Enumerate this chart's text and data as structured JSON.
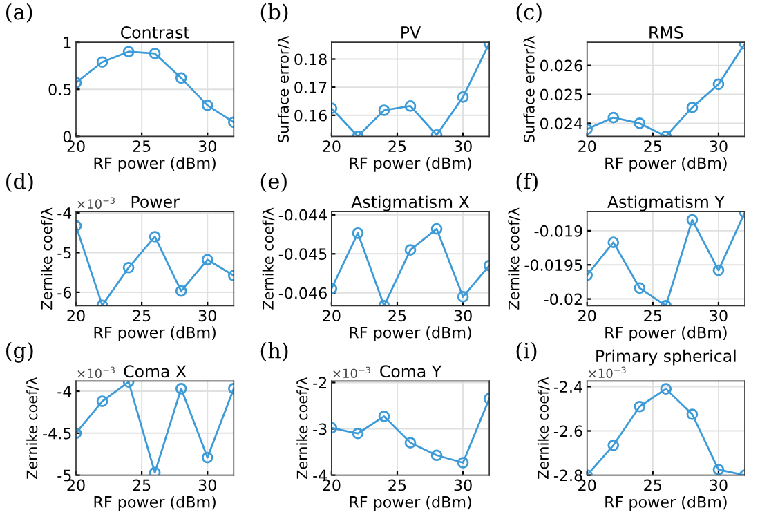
{
  "chart_data": [
    {
      "type": "line",
      "title": "Contrast",
      "xlabel": "RF power (dBm)",
      "annotations": [
        "(a)"
      ],
      "x": [
        20,
        22,
        24,
        26,
        28,
        30,
        32
      ],
      "series": [
        {
          "color": "#3d9bd8",
          "values": [
            0.57,
            0.79,
            0.9,
            0.88,
            0.62,
            0.33,
            0.15
          ]
        }
      ],
      "xlim": [
        20,
        32
      ],
      "xticks": [
        20,
        25,
        30
      ],
      "ylim": [
        0,
        1
      ],
      "yticks": [
        0,
        0.5,
        1
      ],
      "grid": true,
      "marker": "circle",
      "line_style": "solid"
    },
    {
      "type": "line",
      "title": "PV",
      "xlabel": "RF power (dBm)",
      "ylabel": "Surface error/λ",
      "annotations": [
        "(b)"
      ],
      "x": [
        20,
        22,
        24,
        26,
        28,
        30,
        32
      ],
      "series": [
        {
          "color": "#3d9bd8",
          "values": [
            0.1625,
            0.1525,
            0.1618,
            0.1633,
            0.153,
            0.1665,
            0.1856
          ]
        }
      ],
      "xlim": [
        20,
        32
      ],
      "xticks": [
        20,
        25,
        30
      ],
      "ylim": [
        0.1525,
        0.186
      ],
      "yticks": [
        0.16,
        0.17,
        0.18
      ],
      "grid": true,
      "marker": "circle",
      "line_style": "solid"
    },
    {
      "type": "line",
      "title": "RMS",
      "xlabel": "RF power (dBm)",
      "ylabel": "Surface error/λ",
      "annotations": [
        "(c)"
      ],
      "x": [
        20,
        22,
        24,
        26,
        28,
        30,
        32
      ],
      "series": [
        {
          "color": "#3d9bd8",
          "values": [
            0.0238,
            0.0242,
            0.024,
            0.02355,
            0.02455,
            0.02535,
            0.02675
          ]
        }
      ],
      "xlim": [
        20,
        32
      ],
      "xticks": [
        20,
        25,
        30
      ],
      "ylim": [
        0.02355,
        0.0268
      ],
      "yticks": [
        0.024,
        0.025,
        0.026
      ],
      "grid": true,
      "marker": "circle",
      "line_style": "solid"
    },
    {
      "type": "line",
      "title": "Power",
      "xlabel": "RF power (dBm)",
      "ylabel": "Zernike coef/λ",
      "annotations": [
        "(d)",
        "×10$^{−3}$"
      ],
      "x": [
        20,
        22,
        24,
        26,
        28,
        30,
        32
      ],
      "series": [
        {
          "color": "#3d9bd8",
          "values": [
            -4.33,
            -6.33,
            -5.38,
            -4.6,
            -5.97,
            -5.18,
            -5.58
          ]
        }
      ],
      "xlim": [
        20,
        32
      ],
      "xticks": [
        20,
        25,
        30
      ],
      "ylim": [
        -6.34,
        -3.97
      ],
      "yticks": [
        -6,
        -5,
        -4
      ],
      "grid": true,
      "marker": "circle",
      "line_style": "solid"
    },
    {
      "type": "line",
      "title": "Astigmatism X",
      "xlabel": "RF power (dBm)",
      "ylabel": "Zernike coef/λ",
      "annotations": [
        "(e)"
      ],
      "x": [
        20,
        22,
        24,
        26,
        28,
        30,
        32
      ],
      "series": [
        {
          "color": "#3d9bd8",
          "values": [
            -0.04589,
            -0.04447,
            -0.04633,
            -0.0449,
            -0.04436,
            -0.0461,
            -0.0453
          ]
        }
      ],
      "xlim": [
        20,
        32
      ],
      "xticks": [
        20,
        25,
        30
      ],
      "ylim": [
        -0.04633,
        -0.04392
      ],
      "yticks": [
        -0.046,
        -0.045,
        -0.044
      ],
      "grid": true,
      "marker": "circle",
      "line_style": "solid"
    },
    {
      "type": "line",
      "title": "Astigmatism Y",
      "xlabel": "RF power (dBm)",
      "ylabel": "Zernike coef/λ",
      "annotations": [
        "(f)"
      ],
      "x": [
        20,
        22,
        24,
        26,
        28,
        30,
        32
      ],
      "series": [
        {
          "color": "#3d9bd8",
          "values": [
            -0.01965,
            -0.01917,
            -0.01984,
            -0.0201,
            -0.01884,
            -0.01958,
            -0.01873
          ]
        }
      ],
      "xlim": [
        20,
        32
      ],
      "xticks": [
        20,
        25,
        30
      ],
      "ylim": [
        -0.0201,
        -0.01872
      ],
      "yticks": [
        -0.02,
        -0.0195,
        -0.019
      ],
      "grid": true,
      "marker": "circle",
      "line_style": "solid"
    },
    {
      "type": "line",
      "title": "Coma X",
      "xlabel": "RF power (dBm)",
      "ylabel": "Zernike coef/λ",
      "annotations": [
        "(g)",
        "×10$^{−3}$"
      ],
      "x": [
        20,
        22,
        24,
        26,
        28,
        30,
        32
      ],
      "series": [
        {
          "color": "#3d9bd8",
          "values": [
            -4.5,
            -4.12,
            -3.89,
            -4.97,
            -3.97,
            -4.79,
            -3.97
          ]
        }
      ],
      "xlim": [
        20,
        32
      ],
      "xticks": [
        20,
        25,
        30
      ],
      "ylim": [
        -5,
        -3.88
      ],
      "yticks": [
        -5,
        -4.5,
        -4
      ],
      "grid": true,
      "marker": "circle",
      "line_style": "solid"
    },
    {
      "type": "line",
      "title": "Coma Y",
      "xlabel": "RF power (dBm)",
      "ylabel": "Zernike coef/λ",
      "annotations": [
        "(h)",
        "×10$^{−3}$"
      ],
      "x": [
        20,
        22,
        24,
        26,
        28,
        30,
        32
      ],
      "series": [
        {
          "color": "#3d9bd8",
          "values": [
            -2.98,
            -3.1,
            -2.73,
            -3.3,
            -3.57,
            -3.73,
            -2.35
          ]
        }
      ],
      "xlim": [
        20,
        32
      ],
      "xticks": [
        20,
        25,
        30
      ],
      "ylim": [
        -4,
        -1.97
      ],
      "yticks": [
        -4,
        -3,
        -2
      ],
      "grid": true,
      "marker": "circle",
      "line_style": "solid"
    },
    {
      "type": "line",
      "title": "Primary spherical",
      "xlabel": "RF power (dBm)",
      "ylabel": "Zernike coef/λ",
      "annotations": [
        "(i)",
        "×10$^{−3}$"
      ],
      "x": [
        20,
        22,
        24,
        26,
        28,
        30,
        32
      ],
      "series": [
        {
          "color": "#3d9bd8",
          "values": [
            -2.8,
            -2.665,
            -2.49,
            -2.41,
            -2.525,
            -2.775,
            -2.8
          ]
        }
      ],
      "xlim": [
        20,
        32
      ],
      "xticks": [
        20,
        25,
        30
      ],
      "ylim": [
        -2.8,
        -2.375
      ],
      "yticks": [
        -2.8,
        -2.6,
        -2.4
      ],
      "grid": true,
      "marker": "circle",
      "line_style": "solid"
    }
  ]
}
